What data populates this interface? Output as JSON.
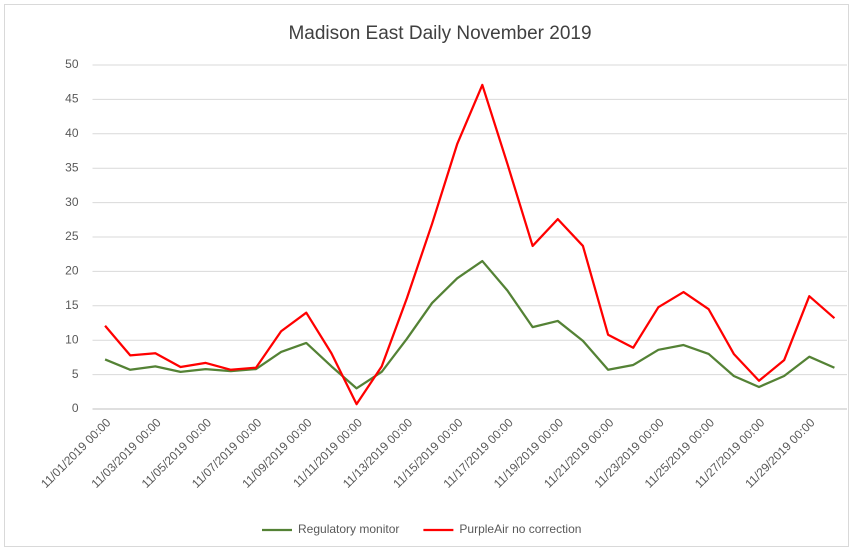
{
  "chart_data": {
    "type": "line",
    "title": "Madison East Daily November 2019",
    "categories": [
      "11/01/2019 00:00",
      null,
      "11/03/2019 00:00",
      null,
      "11/05/2019 00:00",
      null,
      "11/07/2019 00:00",
      null,
      "11/09/2019 00:00",
      null,
      "11/11/2019 00:00",
      null,
      "11/13/2019 00:00",
      null,
      "11/15/2019 00:00",
      null,
      "11/17/2019 00:00",
      null,
      "11/19/2019 00:00",
      null,
      "11/21/2019 00:00",
      null,
      "11/23/2019 00:00",
      null,
      "11/25/2019 00:00",
      null,
      "11/27/2019 00:00",
      null,
      "11/29/2019 00:00",
      null
    ],
    "series": [
      {
        "name": "Regulatory monitor",
        "color": "#548235",
        "values": [
          7.2,
          5.7,
          6.2,
          5.4,
          5.8,
          5.5,
          5.8,
          8.3,
          9.6,
          6.2,
          3.0,
          5.4,
          10.2,
          15.4,
          19.0,
          21.5,
          17.2,
          11.9,
          12.8,
          9.9,
          5.7,
          6.4,
          8.6,
          9.3,
          8.0,
          4.8,
          3.2,
          4.8,
          7.6,
          6.0
        ]
      },
      {
        "name": "PurpleAir no correction",
        "color": "#ff0000",
        "values": [
          12.1,
          7.8,
          8.1,
          6.1,
          6.7,
          5.7,
          6.0,
          11.3,
          14.0,
          8.1,
          0.7,
          6.2,
          16.1,
          26.9,
          38.5,
          47.1,
          35.6,
          23.7,
          27.6,
          23.7,
          10.8,
          8.9,
          14.8,
          17.0,
          14.5,
          8.0,
          4.1,
          7.1,
          16.4,
          13.2
        ]
      }
    ],
    "ylim": [
      0,
      50
    ],
    "yticks": [
      0,
      5,
      10,
      15,
      20,
      25,
      30,
      35,
      40,
      45,
      50
    ],
    "grid": true,
    "legend": "bottom"
  }
}
